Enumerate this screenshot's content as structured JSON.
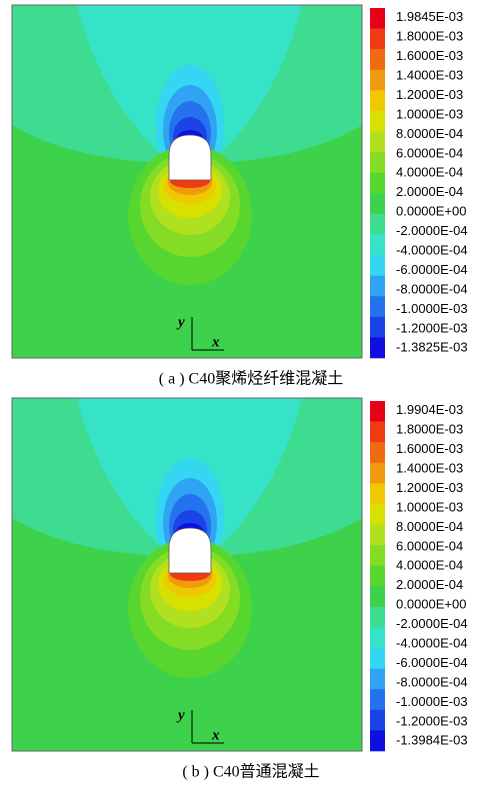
{
  "panels": [
    {
      "caption": "( a ) C40聚烯烃纤维混凝土",
      "axis_x": "x",
      "axis_y": "y",
      "colorbar": [
        "1.9845E-03",
        "1.8000E-03",
        "1.6000E-03",
        "1.4000E-03",
        "1.2000E-03",
        "1.0000E-03",
        "8.0000E-04",
        "6.0000E-04",
        "4.0000E-04",
        "2.0000E-04",
        "0.0000E+00",
        "-2.0000E-04",
        "-4.0000E-04",
        "-6.0000E-04",
        "-8.0000E-04",
        "-1.0000E-03",
        "-1.2000E-03",
        "-1.3825E-03"
      ]
    },
    {
      "caption": "( b ) C40普通混凝土",
      "axis_x": "x",
      "axis_y": "y",
      "colorbar": [
        "1.9904E-03",
        "1.8000E-03",
        "1.6000E-03",
        "1.4000E-03",
        "1.2000E-03",
        "1.0000E-03",
        "8.0000E-04",
        "6.0000E-04",
        "4.0000E-04",
        "2.0000E-04",
        "0.0000E+00",
        "-2.0000E-04",
        "-4.0000E-04",
        "-6.0000E-04",
        "-8.0000E-04",
        "-1.0000E-03",
        "-1.2000E-03",
        "-1.3984E-03"
      ]
    }
  ],
  "colors": [
    "#e8001a",
    "#f03a10",
    "#f06a10",
    "#f09a10",
    "#f0c800",
    "#d8e000",
    "#b0e020",
    "#84dc24",
    "#58d630",
    "#3ed24c",
    "#3edc90",
    "#36e2c8",
    "#34d6f2",
    "#30a4f2",
    "#2472ee",
    "#1a44e6",
    "#1010de"
  ]
}
